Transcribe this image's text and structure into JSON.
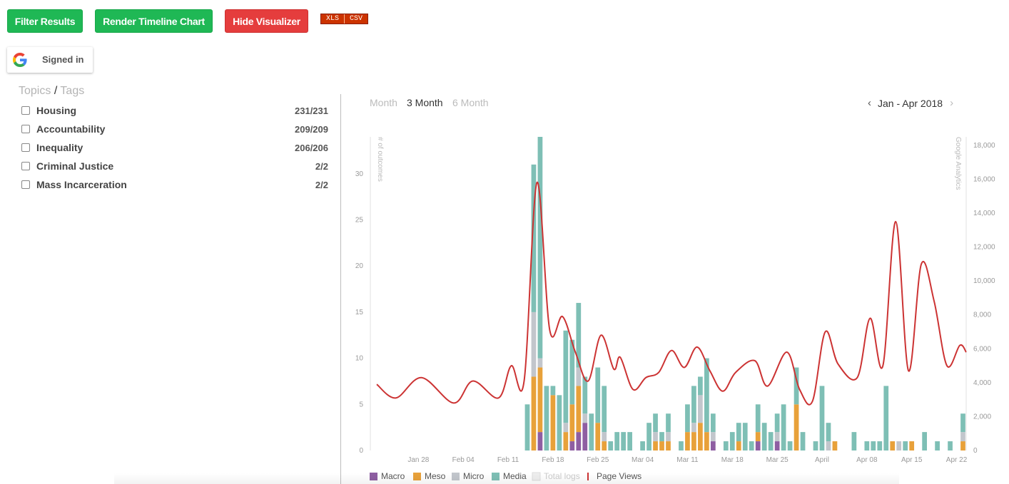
{
  "toolbar": {
    "filter_label": "Filter Results",
    "render_label": "Render Timeline Chart",
    "hide_label": "Hide Visualizer",
    "xls_label": "XLS",
    "csv_label": "CSV"
  },
  "auth": {
    "label": "Signed in",
    "icon": "google-g-icon"
  },
  "filters": {
    "topics_label": "Topics",
    "separator": "/",
    "tags_label": "Tags",
    "items": [
      {
        "label": "Housing",
        "count": "231/231",
        "checked": false
      },
      {
        "label": "Accountability",
        "count": "209/209",
        "checked": false
      },
      {
        "label": "Inequality",
        "count": "206/206",
        "checked": false
      },
      {
        "label": "Criminal Justice",
        "count": "2/2",
        "checked": false
      },
      {
        "label": "Mass Incarceration",
        "count": "2/2",
        "checked": false
      }
    ]
  },
  "periods": {
    "items": [
      "Month",
      "3 Month",
      "6 Month"
    ],
    "active": "3 Month"
  },
  "range": {
    "label": "Jan - Apr 2018",
    "prev_icon": "chevron-left-icon",
    "next_icon": "chevron-right-icon"
  },
  "colors": {
    "macro": "#8e5ea2",
    "meso": "#e8a13a",
    "micro": "#c2c6cc",
    "media": "#7ebfb5",
    "page_views": "#cc3333",
    "btn_green": "#1fb855",
    "btn_red": "#e53d3d"
  },
  "chart_data": {
    "type": "bar",
    "title": "",
    "ylabel": "# of outcomes",
    "y2label": "Google Analytics",
    "ylim": [
      0,
      34
    ],
    "y2lim": [
      0,
      18500
    ],
    "y_ticks": [
      0,
      5,
      10,
      15,
      20,
      25,
      30
    ],
    "y2_ticks": [
      "0",
      "2,000",
      "4,000",
      "6,000",
      "8,000",
      "10,000",
      "12,000",
      "14,000",
      "16,000",
      "18,000"
    ],
    "y2_tick_values": [
      0,
      2000,
      4000,
      6000,
      8000,
      10000,
      12000,
      14000,
      16000,
      18000
    ],
    "x_ticks": [
      {
        "date": "2018-01-28",
        "label": "Jan 28"
      },
      {
        "date": "2018-02-04",
        "label": "Feb 04"
      },
      {
        "date": "2018-02-11",
        "label": "Feb 11"
      },
      {
        "date": "2018-02-18",
        "label": "Feb 18"
      },
      {
        "date": "2018-02-25",
        "label": "Feb 25"
      },
      {
        "date": "2018-03-04",
        "label": "Mar 04"
      },
      {
        "date": "2018-03-11",
        "label": "Mar 11"
      },
      {
        "date": "2018-03-18",
        "label": "Mar 18"
      },
      {
        "date": "2018-03-25",
        "label": "Mar 25"
      },
      {
        "date": "2018-04-01",
        "label": "April"
      },
      {
        "date": "2018-04-08",
        "label": "Apr 08"
      },
      {
        "date": "2018-04-15",
        "label": "Apr 15"
      },
      {
        "date": "2018-04-22",
        "label": "Apr 22"
      }
    ],
    "x_range": [
      "2018-01-21",
      "2018-04-24"
    ],
    "legend": [
      {
        "name": "Macro",
        "color": "#8e5ea2"
      },
      {
        "name": "Meso",
        "color": "#e8a13a"
      },
      {
        "name": "Micro",
        "color": "#c2c6cc"
      },
      {
        "name": "Media",
        "color": "#7ebfb5"
      },
      {
        "name": "Total logs",
        "color": "#eeeeee"
      },
      {
        "name": "Page Views",
        "color": "#cc3333"
      }
    ],
    "stack_order": [
      "macro",
      "meso",
      "micro",
      "media"
    ],
    "bars": [
      {
        "date": "2018-02-14",
        "macro": 0,
        "meso": 0,
        "micro": 0,
        "media": 5
      },
      {
        "date": "2018-02-15",
        "macro": 0,
        "meso": 8,
        "micro": 7,
        "media": 16
      },
      {
        "date": "2018-02-16",
        "macro": 2,
        "meso": 7,
        "micro": 1,
        "media": 24
      },
      {
        "date": "2018-02-17",
        "macro": 0,
        "meso": 0,
        "micro": 0,
        "media": 7
      },
      {
        "date": "2018-02-18",
        "macro": 0,
        "meso": 6,
        "micro": 0,
        "media": 1
      },
      {
        "date": "2018-02-19",
        "macro": 0,
        "meso": 0,
        "micro": 0,
        "media": 6
      },
      {
        "date": "2018-02-20",
        "macro": 0,
        "meso": 2,
        "micro": 1,
        "media": 10
      },
      {
        "date": "2018-02-21",
        "macro": 1,
        "meso": 4,
        "micro": 0,
        "media": 7
      },
      {
        "date": "2018-02-22",
        "macro": 2,
        "meso": 5,
        "micro": 2,
        "media": 7
      },
      {
        "date": "2018-02-23",
        "macro": 3,
        "meso": 0,
        "micro": 1,
        "media": 4
      },
      {
        "date": "2018-02-24",
        "macro": 0,
        "meso": 0,
        "micro": 0,
        "media": 4
      },
      {
        "date": "2018-02-25",
        "macro": 0,
        "meso": 3,
        "micro": 0,
        "media": 6
      },
      {
        "date": "2018-02-26",
        "macro": 0,
        "meso": 1,
        "micro": 1,
        "media": 5
      },
      {
        "date": "2018-02-27",
        "macro": 0,
        "meso": 0,
        "micro": 0,
        "media": 1
      },
      {
        "date": "2018-02-28",
        "macro": 0,
        "meso": 0,
        "micro": 0,
        "media": 2
      },
      {
        "date": "2018-03-01",
        "macro": 0,
        "meso": 0,
        "micro": 0,
        "media": 2
      },
      {
        "date": "2018-03-02",
        "macro": 0,
        "meso": 0,
        "micro": 0,
        "media": 2
      },
      {
        "date": "2018-03-04",
        "macro": 0,
        "meso": 0,
        "micro": 0,
        "media": 1
      },
      {
        "date": "2018-03-05",
        "macro": 0,
        "meso": 0,
        "micro": 0,
        "media": 3
      },
      {
        "date": "2018-03-06",
        "macro": 0,
        "meso": 1,
        "micro": 1,
        "media": 2
      },
      {
        "date": "2018-03-07",
        "macro": 0,
        "meso": 1,
        "micro": 0,
        "media": 1
      },
      {
        "date": "2018-03-08",
        "macro": 0,
        "meso": 1,
        "micro": 1,
        "media": 2
      },
      {
        "date": "2018-03-10",
        "macro": 0,
        "meso": 0,
        "micro": 0,
        "media": 1
      },
      {
        "date": "2018-03-11",
        "macro": 0,
        "meso": 2,
        "micro": 0,
        "media": 3
      },
      {
        "date": "2018-03-12",
        "macro": 0,
        "meso": 2,
        "micro": 1,
        "media": 4
      },
      {
        "date": "2018-03-13",
        "macro": 0,
        "meso": 3,
        "micro": 3,
        "media": 2
      },
      {
        "date": "2018-03-14",
        "macro": 0,
        "meso": 2,
        "micro": 0,
        "media": 8
      },
      {
        "date": "2018-03-15",
        "macro": 1,
        "meso": 0,
        "micro": 1,
        "media": 2
      },
      {
        "date": "2018-03-17",
        "macro": 0,
        "meso": 0,
        "micro": 0,
        "media": 1
      },
      {
        "date": "2018-03-18",
        "macro": 0,
        "meso": 0,
        "micro": 0,
        "media": 2
      },
      {
        "date": "2018-03-19",
        "macro": 0,
        "meso": 1,
        "micro": 0,
        "media": 2
      },
      {
        "date": "2018-03-20",
        "macro": 0,
        "meso": 0,
        "micro": 0,
        "media": 3
      },
      {
        "date": "2018-03-21",
        "macro": 0,
        "meso": 0,
        "micro": 0,
        "media": 1
      },
      {
        "date": "2018-03-22",
        "macro": 1,
        "meso": 1,
        "micro": 0,
        "media": 3
      },
      {
        "date": "2018-03-23",
        "macro": 0,
        "meso": 0,
        "micro": 0,
        "media": 3
      },
      {
        "date": "2018-03-24",
        "macro": 0,
        "meso": 0,
        "micro": 0,
        "media": 2
      },
      {
        "date": "2018-03-25",
        "macro": 1,
        "meso": 0,
        "micro": 1,
        "media": 2
      },
      {
        "date": "2018-03-26",
        "macro": 0,
        "meso": 0,
        "micro": 0,
        "media": 5
      },
      {
        "date": "2018-03-27",
        "macro": 0,
        "meso": 0,
        "micro": 0,
        "media": 1
      },
      {
        "date": "2018-03-28",
        "macro": 0,
        "meso": 5,
        "micro": 0,
        "media": 4
      },
      {
        "date": "2018-03-29",
        "macro": 0,
        "meso": 0,
        "micro": 0,
        "media": 2
      },
      {
        "date": "2018-03-31",
        "macro": 0,
        "meso": 0,
        "micro": 0,
        "media": 1
      },
      {
        "date": "2018-04-01",
        "macro": 0,
        "meso": 0,
        "micro": 0,
        "media": 7
      },
      {
        "date": "2018-04-02",
        "macro": 0,
        "meso": 0,
        "micro": 1,
        "media": 2
      },
      {
        "date": "2018-04-03",
        "macro": 0,
        "meso": 1,
        "micro": 0,
        "media": 0
      },
      {
        "date": "2018-04-06",
        "macro": 0,
        "meso": 0,
        "micro": 0,
        "media": 2
      },
      {
        "date": "2018-04-08",
        "macro": 0,
        "meso": 0,
        "micro": 0,
        "media": 1
      },
      {
        "date": "2018-04-09",
        "macro": 0,
        "meso": 0,
        "micro": 0,
        "media": 1
      },
      {
        "date": "2018-04-10",
        "macro": 0,
        "meso": 0,
        "micro": 0,
        "media": 1
      },
      {
        "date": "2018-04-11",
        "macro": 0,
        "meso": 0,
        "micro": 0,
        "media": 7
      },
      {
        "date": "2018-04-12",
        "macro": 0,
        "meso": 1,
        "micro": 0,
        "media": 0
      },
      {
        "date": "2018-04-13",
        "macro": 0,
        "meso": 0,
        "micro": 1,
        "media": 0
      },
      {
        "date": "2018-04-14",
        "macro": 0,
        "meso": 0,
        "micro": 0,
        "media": 1
      },
      {
        "date": "2018-04-15",
        "macro": 0,
        "meso": 1,
        "micro": 0,
        "media": 0
      },
      {
        "date": "2018-04-17",
        "macro": 0,
        "meso": 0,
        "micro": 0,
        "media": 2
      },
      {
        "date": "2018-04-19",
        "macro": 0,
        "meso": 0,
        "micro": 0,
        "media": 1
      },
      {
        "date": "2018-04-21",
        "macro": 0,
        "meso": 0,
        "micro": 0,
        "media": 1
      },
      {
        "date": "2018-04-23",
        "macro": 0,
        "meso": 1,
        "micro": 1,
        "media": 2
      }
    ],
    "page_views": [
      {
        "date": "2018-01-22",
        "value": 3900
      },
      {
        "date": "2018-01-25",
        "value": 3100
      },
      {
        "date": "2018-01-29",
        "value": 4300
      },
      {
        "date": "2018-02-03",
        "value": 2800
      },
      {
        "date": "2018-02-06",
        "value": 4100
      },
      {
        "date": "2018-02-10",
        "value": 3100
      },
      {
        "date": "2018-02-12",
        "value": 5000
      },
      {
        "date": "2018-02-14",
        "value": 4100
      },
      {
        "date": "2018-02-16",
        "value": 15800
      },
      {
        "date": "2018-02-18",
        "value": 7100
      },
      {
        "date": "2018-02-20",
        "value": 7900
      },
      {
        "date": "2018-02-22",
        "value": 5800
      },
      {
        "date": "2018-02-24",
        "value": 4100
      },
      {
        "date": "2018-02-26",
        "value": 6800
      },
      {
        "date": "2018-02-28",
        "value": 4800
      },
      {
        "date": "2018-03-01",
        "value": 5500
      },
      {
        "date": "2018-03-03",
        "value": 3600
      },
      {
        "date": "2018-03-05",
        "value": 4300
      },
      {
        "date": "2018-03-07",
        "value": 4600
      },
      {
        "date": "2018-03-09",
        "value": 5900
      },
      {
        "date": "2018-03-11",
        "value": 4900
      },
      {
        "date": "2018-03-13",
        "value": 6100
      },
      {
        "date": "2018-03-15",
        "value": 4700
      },
      {
        "date": "2018-03-17",
        "value": 3500
      },
      {
        "date": "2018-03-19",
        "value": 4600
      },
      {
        "date": "2018-03-22",
        "value": 5300
      },
      {
        "date": "2018-03-24",
        "value": 3800
      },
      {
        "date": "2018-03-27",
        "value": 5800
      },
      {
        "date": "2018-03-29",
        "value": 3600
      },
      {
        "date": "2018-03-31",
        "value": 2900
      },
      {
        "date": "2018-04-02",
        "value": 7000
      },
      {
        "date": "2018-04-04",
        "value": 5100
      },
      {
        "date": "2018-04-07",
        "value": 4300
      },
      {
        "date": "2018-04-09",
        "value": 7800
      },
      {
        "date": "2018-04-11",
        "value": 5000
      },
      {
        "date": "2018-04-13",
        "value": 13500
      },
      {
        "date": "2018-04-15",
        "value": 4700
      },
      {
        "date": "2018-04-17",
        "value": 11000
      },
      {
        "date": "2018-04-19",
        "value": 8800
      },
      {
        "date": "2018-04-21",
        "value": 5000
      },
      {
        "date": "2018-04-23",
        "value": 6200
      },
      {
        "date": "2018-04-24",
        "value": 5800
      }
    ]
  }
}
